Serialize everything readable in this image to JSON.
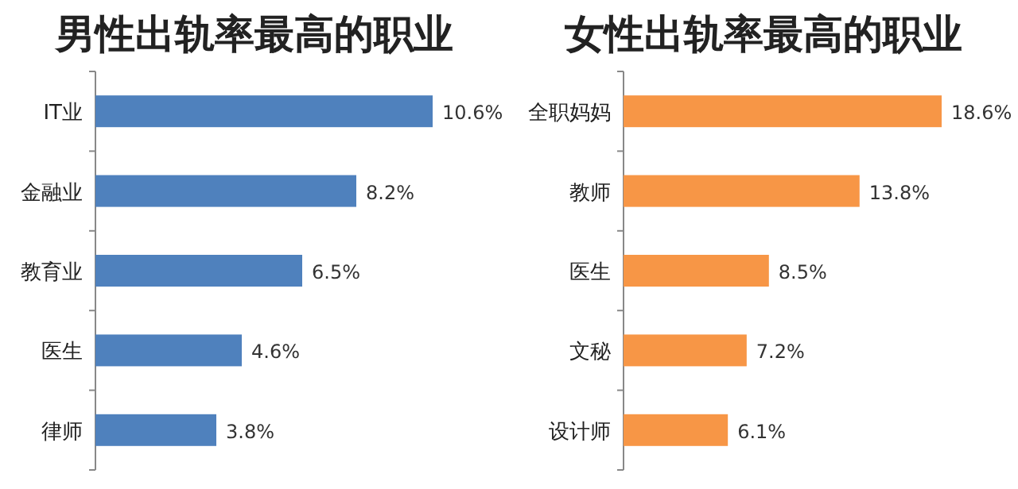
{
  "chart_data": [
    {
      "type": "bar",
      "orientation": "horizontal",
      "title": "男性出轨率最高的职业",
      "categories": [
        "IT业",
        "金融业",
        "教育业",
        "医生",
        "律师"
      ],
      "values": [
        10.6,
        8.2,
        6.5,
        4.6,
        3.8
      ],
      "value_labels": [
        "10.6%",
        "8.2%",
        "6.5%",
        "4.6%",
        "3.8%"
      ],
      "color": "#4f81bd"
    },
    {
      "type": "bar",
      "orientation": "horizontal",
      "title": "女性出轨率最高的职业",
      "categories": [
        "全职妈妈",
        "教师",
        "医生",
        "文秘",
        "设计师"
      ],
      "values": [
        18.6,
        13.8,
        8.5,
        7.2,
        6.1
      ],
      "value_labels": [
        "18.6%",
        "13.8%",
        "8.5%",
        "7.2%",
        "6.1%"
      ],
      "color": "#f79646"
    }
  ]
}
